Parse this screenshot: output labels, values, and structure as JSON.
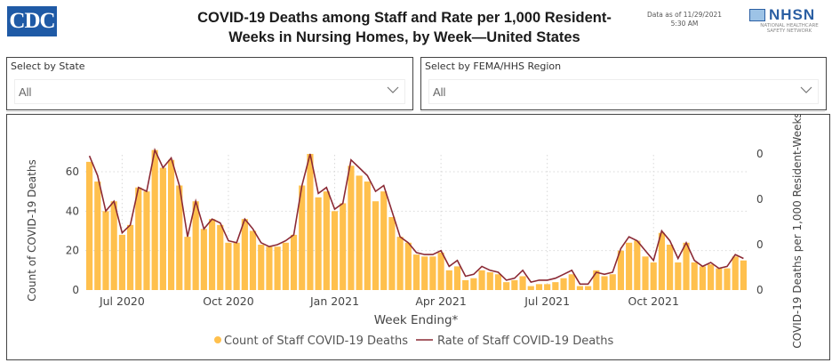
{
  "header": {
    "logo": "CDC",
    "title_line1": "COVID-19 Deaths among Staff and Rate per 1,000 Resident-",
    "title_line2": "Weeks in Nursing Homes, by Week—United States",
    "data_as_of_line1": "Data as of 11/29/2021",
    "data_as_of_line2": "5:30 AM",
    "nhsn_logo": "NHSN",
    "nhsn_sub1": "NATIONAL HEALTHCARE",
    "nhsn_sub2": "SAFETY NETWORK"
  },
  "filters": {
    "state": {
      "label": "Select by State",
      "value": "All",
      "icon": "chevron-down-icon"
    },
    "region": {
      "label": "Select by FEMA/HHS Region",
      "value": "All",
      "icon": "chevron-down-icon"
    }
  },
  "colors": {
    "bar": "#ffc04d",
    "line": "#8b2a35",
    "grid": "#d9d9d9",
    "axis_text": "#444444"
  },
  "chart_data": {
    "type": "bar+line",
    "title": "COVID-19 Deaths among Staff and Rate per 1,000 Resident-Weeks in Nursing Homes, by Week—United States",
    "xlabel": "Week Ending*",
    "ylabel": "Count of COVID-19 Deaths",
    "y2label": "COVID-19 Deaths per 1,000 Resident-Weeks",
    "ylim": [
      0,
      70
    ],
    "yticks": [
      0,
      20,
      40,
      60
    ],
    "y2ticks": [
      "0",
      "0",
      "0",
      "0"
    ],
    "xtick_labels": [
      "Jul 2020",
      "Oct 2020",
      "Jan 2021",
      "Apr 2021",
      "Jul 2021",
      "Oct 2021"
    ],
    "xtick_index": [
      4,
      17,
      30,
      43,
      56,
      69
    ],
    "grid": true,
    "legend": {
      "placement": "bottom-center",
      "entries": [
        "Count of Staff COVID-19 Deaths",
        "Rate of Staff COVID-19 Deaths"
      ]
    },
    "series": [
      {
        "name": "Count of Staff COVID-19 Deaths",
        "type": "bar",
        "values": [
          65,
          55,
          40,
          45,
          28,
          33,
          52,
          50,
          71,
          62,
          66,
          53,
          27,
          45,
          31,
          36,
          33,
          24,
          24,
          36,
          30,
          23,
          22,
          22,
          24,
          28,
          53,
          69,
          47,
          50,
          40,
          44,
          63,
          58,
          55,
          45,
          50,
          37,
          27,
          24,
          18,
          17,
          17,
          19,
          10,
          12,
          5,
          6,
          10,
          9,
          8,
          4,
          5,
          7,
          2,
          3,
          3,
          4,
          6,
          8,
          2,
          2,
          10,
          7,
          8,
          20,
          24,
          25,
          17,
          14,
          29,
          23,
          14,
          24,
          14,
          12,
          13,
          11,
          11,
          17,
          15
        ],
        "axis": "left"
      },
      {
        "name": "Rate of Staff COVID-19 Deaths",
        "type": "line",
        "values": [
          68,
          58,
          40,
          45,
          29,
          33,
          52,
          50,
          71,
          62,
          67,
          53,
          27,
          45,
          31,
          36,
          34,
          25,
          24,
          36,
          31,
          24,
          22,
          23,
          25,
          28,
          53,
          69,
          49,
          52,
          41,
          44,
          66,
          62,
          58,
          50,
          53,
          40,
          27,
          24,
          19,
          18,
          18,
          20,
          12,
          15,
          7,
          8,
          12,
          10,
          9,
          5,
          6,
          10,
          4,
          5,
          5,
          6,
          8,
          10,
          3,
          3,
          9,
          8,
          9,
          21,
          27,
          25,
          20,
          15,
          30,
          25,
          16,
          24,
          15,
          12,
          14,
          11,
          12,
          18,
          16
        ],
        "axis": "right"
      }
    ]
  }
}
